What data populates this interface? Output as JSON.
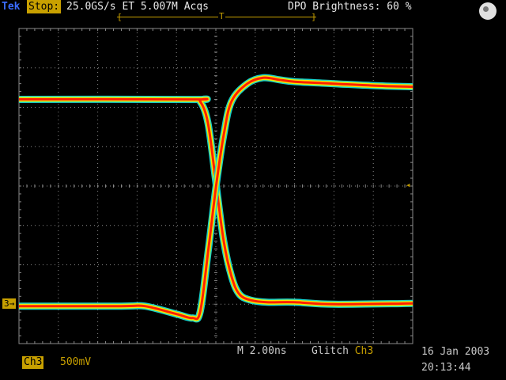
{
  "header": {
    "brand": "Tek",
    "run_state": "Stop:",
    "acquisition": "25.0GS/s ET   5.007M Acqs",
    "dpo_brightness": "DPO Brightness: 60 %"
  },
  "record_bar": {
    "left": "[",
    "right": "]",
    "trigger_marker": "T"
  },
  "channel_marker": "3→",
  "trigger_level_marker": "◂",
  "footer": {
    "timebase_prefix": "M 2.00ns",
    "trigger_type": "Glitch",
    "trigger_source": "Ch3",
    "channel": "Ch3",
    "channel_scale": "500mV",
    "date": "16 Jan 2003",
    "time": "20:13:44"
  },
  "chart_data": {
    "type": "line",
    "title": "",
    "xlabel": "",
    "ylabel": "",
    "x_divisions": 10,
    "y_divisions": 8,
    "grid": true,
    "series": [
      {
        "kind": "falling-edge",
        "x": [
          0,
          4.4,
          4.6,
          4.8,
          5.0,
          5.2,
          5.4,
          5.6,
          5.9,
          6.3,
          7.0,
          8.0,
          10
        ],
        "y": [
          6.2,
          6.2,
          6.15,
          5.6,
          4.1,
          2.6,
          1.7,
          1.25,
          1.1,
          1.05,
          1.05,
          1.0,
          1.02
        ]
      },
      {
        "kind": "rising-edge",
        "x": [
          0,
          2.6,
          3.2,
          4.0,
          4.4,
          4.6,
          4.8,
          5.0,
          5.2,
          5.4,
          5.8,
          6.2,
          6.6,
          7.0,
          8.0,
          9.0,
          10
        ],
        "y": [
          0.95,
          0.95,
          0.95,
          0.75,
          0.65,
          0.8,
          2.3,
          3.95,
          5.3,
          6.15,
          6.6,
          6.75,
          6.7,
          6.65,
          6.6,
          6.55,
          6.52
        ]
      }
    ],
    "colors": {
      "outer": "#18d0c8",
      "mid": "#f0e800",
      "inner": "#ff2000",
      "grid": "#8a8a8a"
    }
  }
}
